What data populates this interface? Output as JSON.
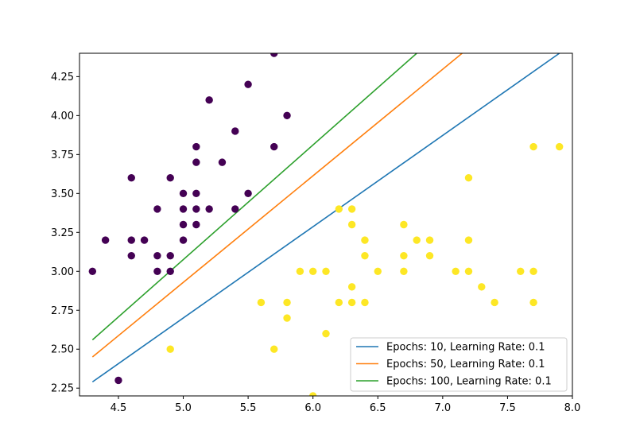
{
  "chart_data": {
    "type": "scatter",
    "title": "",
    "xlabel": "",
    "ylabel": "",
    "xlim": [
      4.2,
      8.0
    ],
    "ylim": [
      2.2,
      4.4
    ],
    "xticks": [
      "4.5",
      "5.0",
      "5.5",
      "6.0",
      "6.5",
      "7.0",
      "7.5",
      "8.0"
    ],
    "yticks": [
      "2.25",
      "2.50",
      "2.75",
      "3.00",
      "3.25",
      "3.50",
      "3.75",
      "4.00",
      "4.25"
    ],
    "grid": false,
    "legend_position": "lower-right",
    "scatter_series": [
      {
        "class": 0,
        "color": "#440154",
        "points": [
          [
            4.3,
            3.0
          ],
          [
            4.4,
            3.2
          ],
          [
            4.5,
            2.3
          ],
          [
            4.6,
            3.6
          ],
          [
            4.6,
            3.2
          ],
          [
            4.6,
            3.1
          ],
          [
            4.7,
            3.2
          ],
          [
            4.8,
            3.4
          ],
          [
            4.8,
            3.1
          ],
          [
            4.8,
            3.0
          ],
          [
            4.9,
            3.6
          ],
          [
            4.9,
            3.1
          ],
          [
            4.9,
            3.0
          ],
          [
            5.0,
            3.5
          ],
          [
            5.0,
            3.4
          ],
          [
            5.0,
            3.3
          ],
          [
            5.0,
            3.2
          ],
          [
            5.1,
            3.8
          ],
          [
            5.1,
            3.7
          ],
          [
            5.1,
            3.5
          ],
          [
            5.1,
            3.4
          ],
          [
            5.1,
            3.3
          ],
          [
            5.2,
            4.1
          ],
          [
            5.2,
            3.4
          ],
          [
            5.3,
            3.7
          ],
          [
            5.4,
            3.9
          ],
          [
            5.4,
            3.4
          ],
          [
            5.5,
            4.2
          ],
          [
            5.5,
            3.5
          ],
          [
            5.7,
            4.4
          ],
          [
            5.7,
            3.8
          ],
          [
            5.8,
            4.0
          ]
        ]
      },
      {
        "class": 1,
        "color": "#fde725",
        "points": [
          [
            4.9,
            2.5
          ],
          [
            5.6,
            2.8
          ],
          [
            5.7,
            2.5
          ],
          [
            5.8,
            2.8
          ],
          [
            5.8,
            2.7
          ],
          [
            5.9,
            3.0
          ],
          [
            6.0,
            3.0
          ],
          [
            6.0,
            2.2
          ],
          [
            6.1,
            3.0
          ],
          [
            6.1,
            2.6
          ],
          [
            6.2,
            3.4
          ],
          [
            6.2,
            2.8
          ],
          [
            6.3,
            3.4
          ],
          [
            6.3,
            3.3
          ],
          [
            6.3,
            2.9
          ],
          [
            6.3,
            2.8
          ],
          [
            6.4,
            3.2
          ],
          [
            6.4,
            3.1
          ],
          [
            6.4,
            2.8
          ],
          [
            6.5,
            3.0
          ],
          [
            6.7,
            3.3
          ],
          [
            6.7,
            3.1
          ],
          [
            6.7,
            3.0
          ],
          [
            6.8,
            3.2
          ],
          [
            6.9,
            3.2
          ],
          [
            6.9,
            3.1
          ],
          [
            7.1,
            3.0
          ],
          [
            7.2,
            3.6
          ],
          [
            7.2,
            3.2
          ],
          [
            7.2,
            3.0
          ],
          [
            7.3,
            2.9
          ],
          [
            7.4,
            2.8
          ],
          [
            7.6,
            3.0
          ],
          [
            7.7,
            3.8
          ],
          [
            7.7,
            3.0
          ],
          [
            7.7,
            2.8
          ],
          [
            7.9,
            3.8
          ]
        ]
      }
    ],
    "series": [
      {
        "name": "Epochs: 10, Learning Rate: 0.1",
        "color": "#1f77b4",
        "x": [
          4.3,
          7.9
        ],
        "y": [
          2.29,
          4.4
        ]
      },
      {
        "name": "Epochs: 50, Learning Rate: 0.1",
        "color": "#ff7f0e",
        "x": [
          4.3,
          7.15
        ],
        "y": [
          2.45,
          4.4
        ]
      },
      {
        "name": "Epochs: 100, Learning Rate: 0.1",
        "color": "#2ca02c",
        "x": [
          4.3,
          6.8
        ],
        "y": [
          2.56,
          4.4
        ]
      }
    ]
  }
}
